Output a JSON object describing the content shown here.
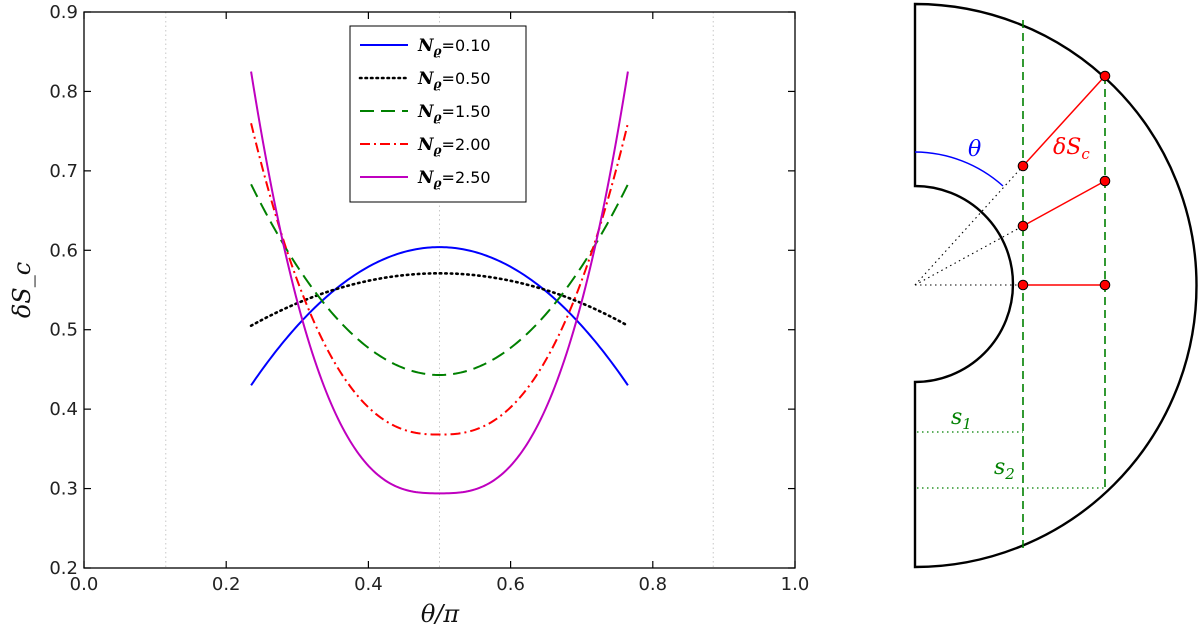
{
  "chart_data": [
    {
      "type": "line",
      "title": "",
      "xlabel": "θ/π",
      "ylabel": "δS_c",
      "xlim": [
        0.0,
        1.0
      ],
      "ylim": [
        0.2,
        0.9
      ],
      "grid": false,
      "vlines": [
        0.115,
        0.5,
        0.885
      ],
      "x_ticks": [
        "0.0",
        "0.2",
        "0.4",
        "0.6",
        "0.8",
        "1.0"
      ],
      "y_ticks": [
        "0.2",
        "0.3",
        "0.4",
        "0.5",
        "0.6",
        "0.7",
        "0.8",
        "0.9"
      ],
      "legend_location": "top-center",
      "x_range": [
        0.235,
        0.765
      ],
      "series": [
        {
          "name": "N_ϱ=0.10",
          "sym": "N",
          "sub": "ϱ",
          "value": "=0.10",
          "color": "#0000ff",
          "dash": "",
          "center": 0.604,
          "edge": 0.43,
          "power": 2
        },
        {
          "name": "N_ϱ=0.50",
          "sym": "N",
          "sub": "ϱ",
          "value": "=0.50",
          "color": "#000000",
          "dash": "1.5 4",
          "center": 0.571,
          "edge": 0.505,
          "power": 2
        },
        {
          "name": "N_ϱ=1.50",
          "sym": "N",
          "sub": "ϱ",
          "value": "=1.50",
          "color": "#008000",
          "dash": "14 7",
          "center": 0.443,
          "edge": 0.683,
          "power": 2
        },
        {
          "name": "N_ϱ=2.00",
          "sym": "N",
          "sub": "ϱ",
          "value": "=2.00",
          "color": "#ff0000",
          "dash": "10 4 2 4",
          "center": 0.368,
          "edge": 0.76,
          "power": 2.5
        },
        {
          "name": "N_ϱ=2.50",
          "sym": "N",
          "sub": "ϱ",
          "value": "=2.50",
          "color": "#bf00bf",
          "dash": "",
          "center": 0.294,
          "edge": 0.825,
          "power": 2.8
        }
      ]
    }
  ],
  "diagram": {
    "labels": {
      "theta": "θ",
      "delta_s": "δS",
      "delta_s_sub": "c",
      "s1": "s",
      "s1_sub": "1",
      "s2": "s",
      "s2_sub": "2"
    },
    "colors": {
      "shell": "#000000",
      "chord": "#ff0000",
      "theta": "#0000ff",
      "guide": "#008000"
    }
  }
}
